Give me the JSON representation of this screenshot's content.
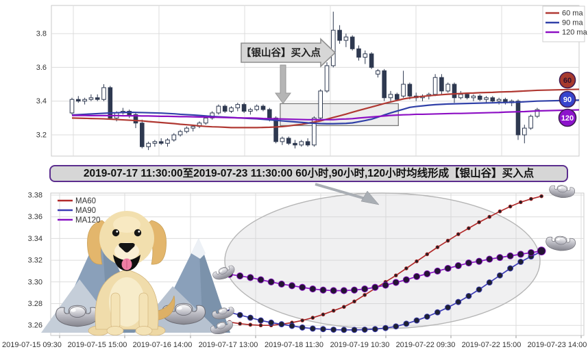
{
  "banner": {
    "text": "2019-07-17 11:30:00至2019-07-23 11:30:00 60小时,90小时,120小时均线形成【银山谷】买入点"
  },
  "chart_data": [
    {
      "id": "hourly-candlestick",
      "type": "candlestick",
      "title": "",
      "y_ticks": [
        "3.8",
        "3.6",
        "3.4",
        "3.2"
      ],
      "ylim": [
        3.07,
        3.97
      ],
      "grid": true,
      "legend_position": "top-right",
      "legend": [
        {
          "label": "60 ma",
          "color": "#b03832"
        },
        {
          "label": "90 ma",
          "color": "#3040a8"
        },
        {
          "label": "120 ma",
          "color": "#8c0fc4"
        }
      ],
      "candle_colors": {
        "up_fill": "#ffffff",
        "down_fill": "#2e3950",
        "outline": "#2e3950"
      },
      "candles": [
        [
          3.33,
          3.42,
          3.32,
          3.41
        ],
        [
          3.41,
          3.43,
          3.39,
          3.4
        ],
        [
          3.4,
          3.42,
          3.38,
          3.41
        ],
        [
          3.41,
          3.44,
          3.4,
          3.42
        ],
        [
          3.42,
          3.44,
          3.4,
          3.41
        ],
        [
          3.41,
          3.5,
          3.4,
          3.48
        ],
        [
          3.48,
          3.49,
          3.29,
          3.3
        ],
        [
          3.3,
          3.34,
          3.28,
          3.33
        ],
        [
          3.33,
          3.36,
          3.32,
          3.34
        ],
        [
          3.34,
          3.35,
          3.3,
          3.32
        ],
        [
          3.32,
          3.33,
          3.24,
          3.27
        ],
        [
          3.27,
          3.29,
          3.12,
          3.13
        ],
        [
          3.13,
          3.16,
          3.11,
          3.15
        ],
        [
          3.15,
          3.17,
          3.13,
          3.16
        ],
        [
          3.16,
          3.18,
          3.14,
          3.15
        ],
        [
          3.15,
          3.18,
          3.13,
          3.17
        ],
        [
          3.17,
          3.21,
          3.16,
          3.2
        ],
        [
          3.2,
          3.23,
          3.19,
          3.22
        ],
        [
          3.22,
          3.25,
          3.21,
          3.24
        ],
        [
          3.24,
          3.26,
          3.22,
          3.25
        ],
        [
          3.25,
          3.28,
          3.24,
          3.27
        ],
        [
          3.27,
          3.31,
          3.26,
          3.3
        ],
        [
          3.3,
          3.34,
          3.29,
          3.33
        ],
        [
          3.33,
          3.38,
          3.32,
          3.37
        ],
        [
          3.37,
          3.38,
          3.33,
          3.34
        ],
        [
          3.34,
          3.37,
          3.33,
          3.36
        ],
        [
          3.36,
          3.39,
          3.34,
          3.38
        ],
        [
          3.38,
          3.39,
          3.33,
          3.34
        ],
        [
          3.34,
          3.36,
          3.32,
          3.35
        ],
        [
          3.35,
          3.38,
          3.34,
          3.37
        ],
        [
          3.37,
          3.38,
          3.34,
          3.35
        ],
        [
          3.35,
          3.36,
          3.28,
          3.3
        ],
        [
          3.3,
          3.31,
          3.15,
          3.16
        ],
        [
          3.16,
          3.19,
          3.14,
          3.18
        ],
        [
          3.18,
          3.19,
          3.14,
          3.15
        ],
        [
          3.15,
          3.17,
          3.12,
          3.14
        ],
        [
          3.14,
          3.17,
          3.13,
          3.16
        ],
        [
          3.16,
          3.18,
          3.13,
          3.14
        ],
        [
          3.14,
          3.31,
          3.13,
          3.3
        ],
        [
          3.3,
          3.47,
          3.29,
          3.46
        ],
        [
          3.46,
          3.63,
          3.45,
          3.61
        ],
        [
          3.61,
          3.93,
          3.6,
          3.82
        ],
        [
          3.82,
          3.85,
          3.74,
          3.76
        ],
        [
          3.76,
          3.8,
          3.72,
          3.78
        ],
        [
          3.78,
          3.79,
          3.7,
          3.71
        ],
        [
          3.71,
          3.73,
          3.64,
          3.66
        ],
        [
          3.66,
          3.7,
          3.62,
          3.68
        ],
        [
          3.68,
          3.69,
          3.59,
          3.6
        ],
        [
          3.56,
          3.59,
          3.54,
          3.58
        ],
        [
          3.58,
          3.59,
          3.4,
          3.42
        ],
        [
          3.42,
          3.46,
          3.4,
          3.44
        ],
        [
          3.44,
          3.45,
          3.4,
          3.41
        ],
        [
          3.43,
          3.58,
          3.42,
          3.5
        ],
        [
          3.5,
          3.51,
          3.41,
          3.43
        ],
        [
          3.43,
          3.45,
          3.4,
          3.42
        ],
        [
          3.42,
          3.44,
          3.4,
          3.43
        ],
        [
          3.43,
          3.45,
          3.41,
          3.44
        ],
        [
          3.44,
          3.56,
          3.43,
          3.54
        ],
        [
          3.54,
          3.56,
          3.44,
          3.46
        ],
        [
          3.46,
          3.51,
          3.45,
          3.5
        ],
        [
          3.5,
          3.51,
          3.39,
          3.42
        ],
        [
          3.42,
          3.46,
          3.41,
          3.44
        ],
        [
          3.44,
          3.45,
          3.41,
          3.42
        ],
        [
          3.42,
          3.44,
          3.4,
          3.43
        ],
        [
          3.43,
          3.44,
          3.4,
          3.41
        ],
        [
          3.41,
          3.43,
          3.39,
          3.42
        ],
        [
          3.42,
          3.43,
          3.39,
          3.4
        ],
        [
          3.4,
          3.42,
          3.38,
          3.41
        ],
        [
          3.41,
          3.42,
          3.38,
          3.39
        ],
        [
          3.39,
          3.41,
          3.37,
          3.4
        ],
        [
          3.4,
          3.41,
          3.17,
          3.2
        ],
        [
          3.2,
          3.26,
          3.15,
          3.24
        ],
        [
          3.24,
          3.32,
          3.23,
          3.31
        ],
        [
          3.31,
          3.36,
          3.3,
          3.35
        ]
      ],
      "series": [
        {
          "name": "60 ma",
          "color": "#b03832",
          "values": [
            3.3,
            3.299,
            3.298,
            3.297,
            3.296,
            3.295,
            3.293,
            3.291,
            3.289,
            3.287,
            3.285,
            3.283,
            3.279,
            3.276,
            3.273,
            3.27,
            3.267,
            3.263,
            3.26,
            3.257,
            3.253,
            3.25,
            3.248,
            3.247,
            3.245,
            3.243,
            3.243,
            3.243,
            3.243,
            3.243,
            3.244,
            3.245,
            3.247,
            3.249,
            3.253,
            3.258,
            3.262,
            3.269,
            3.276,
            3.283,
            3.293,
            3.303,
            3.313,
            3.323,
            3.334,
            3.345,
            3.355,
            3.365,
            3.375,
            3.386,
            3.395,
            3.404,
            3.413,
            3.419,
            3.424,
            3.428,
            3.432,
            3.435,
            3.438,
            3.441,
            3.443,
            3.445,
            3.447,
            3.448,
            3.45,
            3.451,
            3.452,
            3.454,
            3.455,
            3.456,
            3.458,
            3.46,
            3.462,
            3.464
          ]
        },
        {
          "name": "90 ma",
          "color": "#3040a8",
          "values": [
            3.318,
            3.32,
            3.322,
            3.324,
            3.326,
            3.328,
            3.33,
            3.331,
            3.333,
            3.334,
            3.333,
            3.332,
            3.331,
            3.33,
            3.329,
            3.327,
            3.325,
            3.322,
            3.32,
            3.318,
            3.315,
            3.312,
            3.309,
            3.307,
            3.305,
            3.303,
            3.301,
            3.299,
            3.297,
            3.295,
            3.292,
            3.289,
            3.286,
            3.283,
            3.28,
            3.277,
            3.274,
            3.271,
            3.269,
            3.267,
            3.266,
            3.266,
            3.267,
            3.268,
            3.271,
            3.278,
            3.285,
            3.293,
            3.305,
            3.318,
            3.33,
            3.341,
            3.352,
            3.363,
            3.368,
            3.372,
            3.376,
            3.379,
            3.381,
            3.383,
            3.384,
            3.385,
            3.386,
            3.387,
            3.388,
            3.389,
            3.39,
            3.391,
            3.392,
            3.393,
            3.394,
            3.396,
            3.398,
            3.4
          ]
        },
        {
          "name": "120 ma",
          "color": "#8c0fc4",
          "values": [
            3.315,
            3.315,
            3.315,
            3.314,
            3.314,
            3.314,
            3.314,
            3.314,
            3.313,
            3.313,
            3.313,
            3.312,
            3.312,
            3.311,
            3.31,
            3.31,
            3.309,
            3.308,
            3.308,
            3.307,
            3.306,
            3.306,
            3.305,
            3.304,
            3.303,
            3.302,
            3.301,
            3.3,
            3.3,
            3.299,
            3.297,
            3.296,
            3.295,
            3.294,
            3.293,
            3.292,
            3.291,
            3.29,
            3.29,
            3.29,
            3.29,
            3.29,
            3.293,
            3.294,
            3.296,
            3.3,
            3.303,
            3.306,
            3.309,
            3.312,
            3.315,
            3.317,
            3.319,
            3.32,
            3.322,
            3.322,
            3.323,
            3.324,
            3.325,
            3.326,
            3.327,
            3.327,
            3.328,
            3.329,
            3.33,
            3.331,
            3.332,
            3.333,
            3.335,
            3.336,
            3.337,
            3.338,
            3.34,
            3.342
          ]
        }
      ],
      "annotation_flag": {
        "text": "【银山谷】买入点"
      },
      "highlight_box": {
        "from_candle": 33,
        "to_candle": 51,
        "price_top": 3.385,
        "price_bottom": 3.255
      },
      "end_badges": [
        {
          "label": "60",
          "bg": "#a73a2e",
          "fg": "#2f0f2d"
        },
        {
          "label": "90",
          "bg": "#3644cd",
          "fg": "#ffffff"
        },
        {
          "label": "120",
          "bg": "#8d13cc",
          "fg": "#ffffff"
        }
      ]
    },
    {
      "id": "ma-detail-line",
      "type": "line",
      "title": "",
      "x_labels": [
        "2019-07-15 09:30",
        "2019-07-15 15:00",
        "2019-07-16 14:00",
        "2019-07-17 13:00",
        "2019-07-18 11:30",
        "2019-07-19 10:30",
        "2019-07-22 09:30",
        "2019-07-22 15:00",
        "2019-07-23 14:00"
      ],
      "y_ticks": [
        "3.38",
        "3.36",
        "3.34",
        "3.32",
        "3.30",
        "3.28",
        "3.26"
      ],
      "ylim": [
        3.2505,
        3.382
      ],
      "grid": true,
      "legend_position": "top-left",
      "series": [
        {
          "name": "MA60",
          "color": "#b22a2a",
          "marker_r": 2.4,
          "marker_fill": "#241d22",
          "values": [
            3.263,
            3.2615,
            3.2605,
            3.26,
            3.26,
            3.261,
            3.2625,
            3.2645,
            3.267,
            3.27,
            3.2735,
            3.277,
            3.282,
            3.288,
            3.294,
            3.3,
            3.306,
            3.3125,
            3.319,
            3.3255,
            3.332,
            3.338,
            3.344,
            3.3495,
            3.355,
            3.36,
            3.365,
            3.3695,
            3.3735,
            3.3765,
            3.379
          ]
        },
        {
          "name": "MA90",
          "color": "#3b3bb5",
          "marker_r": 4.0,
          "marker_fill": "#1e2132",
          "values": [
            3.272,
            3.2695,
            3.267,
            3.2645,
            3.2625,
            3.261,
            3.2595,
            3.258,
            3.257,
            3.2565,
            3.256,
            3.2558,
            3.2558,
            3.256,
            3.2565,
            3.2575,
            3.259,
            3.2615,
            3.2645,
            3.268,
            3.272,
            3.2765,
            3.2815,
            3.287,
            3.293,
            3.2995,
            3.306,
            3.3125,
            3.3185,
            3.3235,
            3.328
          ]
        },
        {
          "name": "MA120",
          "color": "#8812c4",
          "marker_r": 4.6,
          "marker_fill": "#241434",
          "values": [
            3.307,
            3.3055,
            3.304,
            3.302,
            3.3,
            3.298,
            3.2965,
            3.295,
            3.2935,
            3.2925,
            3.292,
            3.292,
            3.2925,
            3.2935,
            3.295,
            3.297,
            3.2995,
            3.302,
            3.305,
            3.3075,
            3.31,
            3.3125,
            3.315,
            3.3175,
            3.319,
            3.321,
            3.3225,
            3.324,
            3.3255,
            3.327,
            3.3285
          ]
        }
      ]
    }
  ],
  "decorations": {
    "items": [
      "golden-retriever-illustration",
      "mountains-illustration",
      "silver-ingot-icon",
      "highlight-ellipse",
      "callout-arrow",
      "down-arrow-icon",
      "annotation-flag"
    ]
  }
}
